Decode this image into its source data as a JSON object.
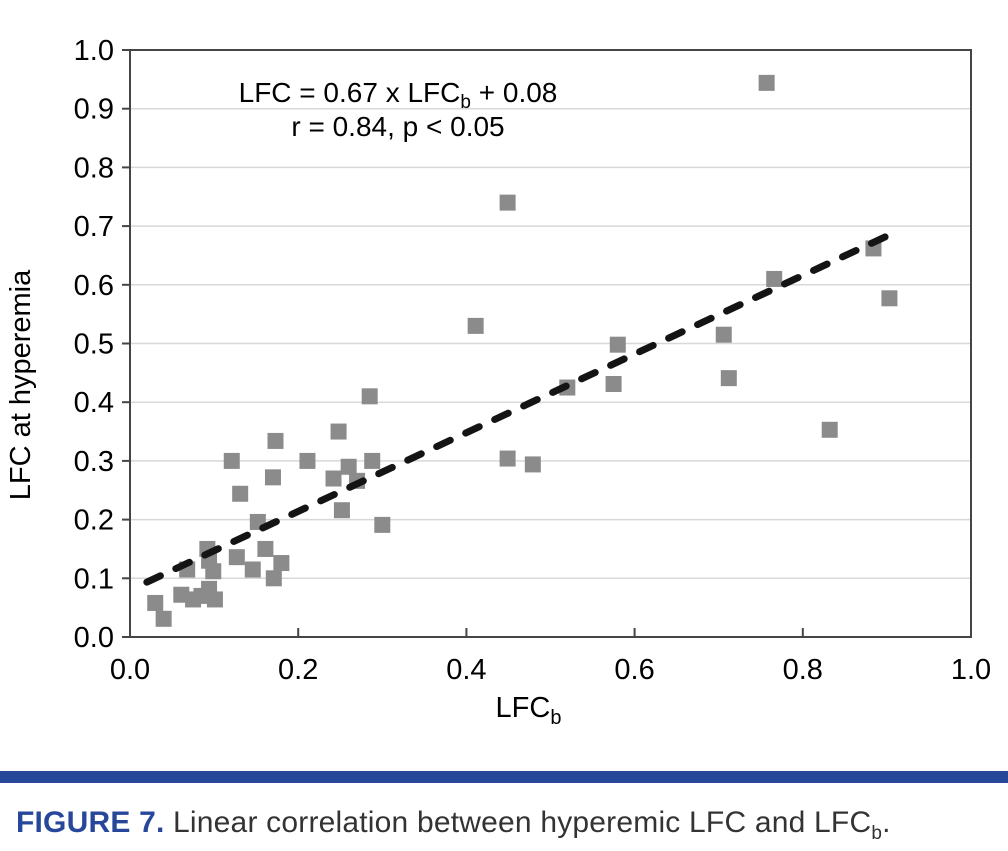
{
  "figure_caption": {
    "label": "FIGURE 7.",
    "text": " Linear correlation between hyperemic LFC and LFC",
    "subscript": "b",
    "suffix": ".",
    "label_color": "#27479b",
    "text_color": "#333333",
    "bar_color": "#27479b"
  },
  "chart_data": {
    "type": "scatter",
    "title": "",
    "ylabel": "LFC at hyperemia",
    "xlabel": {
      "text": "LFC",
      "sub": "b"
    },
    "xlim": [
      0.0,
      1.0
    ],
    "ylim": [
      0.0,
      1.0
    ],
    "grid": "horizontal",
    "legend": "none",
    "annotation": {
      "line1_pre": "LFC = 0.67 x LFC",
      "line1_sub": "b",
      "line1_post": " + 0.08",
      "line2": "r = 0.84, p < 0.05"
    },
    "xticks": [
      {
        "value": 0.0,
        "label": "0.0"
      },
      {
        "value": 0.2,
        "label": "0.2"
      },
      {
        "value": 0.4,
        "label": "0.4"
      },
      {
        "value": 0.6,
        "label": "0.6"
      },
      {
        "value": 0.8,
        "label": "0.8"
      },
      {
        "value": 1.0,
        "label": "1.0"
      }
    ],
    "yticks": [
      {
        "value": 0.0,
        "label": "0.0"
      },
      {
        "value": 0.1,
        "label": "0.1"
      },
      {
        "value": 0.2,
        "label": "0.2"
      },
      {
        "value": 0.3,
        "label": "0.3"
      },
      {
        "value": 0.4,
        "label": "0.4"
      },
      {
        "value": 0.5,
        "label": "0.5"
      },
      {
        "value": 0.6,
        "label": "0.6"
      },
      {
        "value": 0.7,
        "label": "0.7"
      },
      {
        "value": 0.8,
        "label": "0.8"
      },
      {
        "value": 0.9,
        "label": "0.9"
      },
      {
        "value": 1.0,
        "label": "1.0"
      }
    ],
    "marker": {
      "shape": "square",
      "size": 16,
      "color": "#8b8b8b"
    },
    "trendline": {
      "style": "dashed",
      "color": "#141414",
      "slope": 0.67,
      "intercept": 0.08,
      "x_start": 0.02,
      "x_end": 0.905,
      "r": 0.84,
      "p": "< 0.05"
    },
    "colors": {
      "grid": "#d8d8d8",
      "axis_border": "#454545",
      "tick": "#454545",
      "text": "#000000",
      "plot_background": "#ffffff"
    },
    "points": [
      [
        0.03,
        0.058
      ],
      [
        0.04,
        0.031
      ],
      [
        0.061,
        0.072
      ],
      [
        0.075,
        0.064
      ],
      [
        0.085,
        0.07
      ],
      [
        0.094,
        0.082
      ],
      [
        0.101,
        0.064
      ],
      [
        0.068,
        0.115
      ],
      [
        0.099,
        0.112
      ],
      [
        0.094,
        0.13
      ],
      [
        0.092,
        0.15
      ],
      [
        0.127,
        0.136
      ],
      [
        0.146,
        0.115
      ],
      [
        0.161,
        0.15
      ],
      [
        0.171,
        0.1
      ],
      [
        0.18,
        0.126
      ],
      [
        0.121,
        0.3
      ],
      [
        0.131,
        0.244
      ],
      [
        0.152,
        0.196
      ],
      [
        0.17,
        0.272
      ],
      [
        0.173,
        0.334
      ],
      [
        0.211,
        0.3
      ],
      [
        0.242,
        0.27
      ],
      [
        0.248,
        0.35
      ],
      [
        0.252,
        0.216
      ],
      [
        0.26,
        0.29
      ],
      [
        0.27,
        0.266
      ],
      [
        0.285,
        0.41
      ],
      [
        0.288,
        0.3
      ],
      [
        0.3,
        0.191
      ],
      [
        0.411,
        0.53
      ],
      [
        0.449,
        0.74
      ],
      [
        0.449,
        0.304
      ],
      [
        0.479,
        0.294
      ],
      [
        0.52,
        0.425
      ],
      [
        0.575,
        0.431
      ],
      [
        0.58,
        0.498
      ],
      [
        0.706,
        0.515
      ],
      [
        0.712,
        0.441
      ],
      [
        0.757,
        0.944
      ],
      [
        0.766,
        0.61
      ],
      [
        0.832,
        0.353
      ],
      [
        0.884,
        0.662
      ],
      [
        0.903,
        0.577
      ]
    ]
  }
}
